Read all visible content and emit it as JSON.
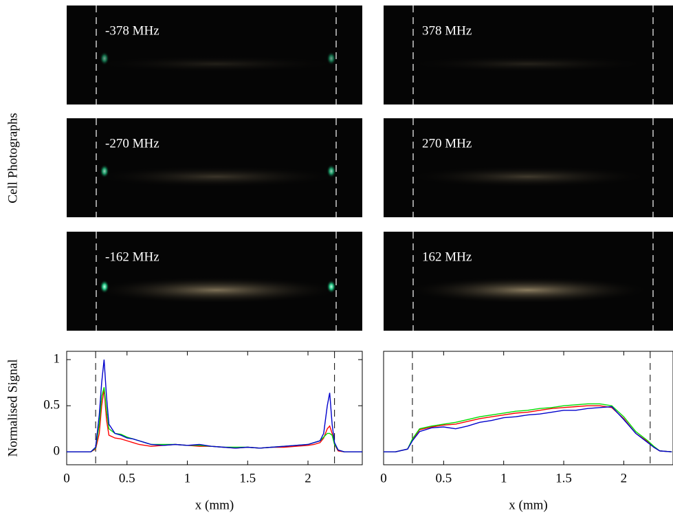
{
  "photos_label": "Cell Photographs",
  "photos": [
    {
      "label": "-378 MHz"
    },
    {
      "label": "378 MHz"
    },
    {
      "label": "-270 MHz"
    },
    {
      "label": "270 MHz"
    },
    {
      "label": "-162 MHz"
    },
    {
      "label": "162 MHz"
    }
  ],
  "chart_data": [
    {
      "type": "line",
      "ylabel": "Normalised Signal",
      "xlabel": "x (mm)",
      "xlim": [
        0,
        2.45
      ],
      "ylim": [
        -0.14,
        1.09
      ],
      "xticks": [
        0,
        0.5,
        1,
        1.5,
        2
      ],
      "yticks": [
        0,
        0.5,
        1
      ],
      "vlines": [
        0.24,
        2.22
      ],
      "x": [
        0,
        0.1,
        0.2,
        0.24,
        0.27,
        0.29,
        0.31,
        0.33,
        0.35,
        0.4,
        0.45,
        0.5,
        0.55,
        0.6,
        0.65,
        0.7,
        0.8,
        0.9,
        1.0,
        1.1,
        1.2,
        1.3,
        1.4,
        1.5,
        1.6,
        1.7,
        1.8,
        1.9,
        2.0,
        2.05,
        2.1,
        2.13,
        2.16,
        2.18,
        2.2,
        2.22,
        2.25,
        2.3,
        2.4,
        2.45
      ],
      "series": [
        {
          "color": "#ff0000",
          "values": [
            0,
            0,
            0,
            0.03,
            0.2,
            0.5,
            0.68,
            0.35,
            0.18,
            0.15,
            0.14,
            0.12,
            0.1,
            0.08,
            0.07,
            0.06,
            0.07,
            0.08,
            0.07,
            0.06,
            0.06,
            0.05,
            0.04,
            0.05,
            0.04,
            0.05,
            0.05,
            0.06,
            0.07,
            0.08,
            0.1,
            0.15,
            0.25,
            0.28,
            0.2,
            0.08,
            0.01,
            0,
            0,
            0
          ]
        },
        {
          "color": "#00dd00",
          "values": [
            0,
            0,
            0,
            0.04,
            0.3,
            0.6,
            0.7,
            0.45,
            0.25,
            0.2,
            0.19,
            0.16,
            0.14,
            0.12,
            0.1,
            0.08,
            0.08,
            0.08,
            0.07,
            0.07,
            0.06,
            0.05,
            0.05,
            0.05,
            0.04,
            0.05,
            0.06,
            0.07,
            0.08,
            0.1,
            0.12,
            0.16,
            0.2,
            0.2,
            0.18,
            0.08,
            0.02,
            0,
            0,
            0
          ]
        },
        {
          "color": "#0000cc",
          "values": [
            0,
            0,
            0,
            0.05,
            0.4,
            0.75,
            1.0,
            0.6,
            0.3,
            0.2,
            0.18,
            0.15,
            0.14,
            0.12,
            0.1,
            0.08,
            0.07,
            0.08,
            0.07,
            0.08,
            0.06,
            0.05,
            0.04,
            0.05,
            0.04,
            0.05,
            0.06,
            0.07,
            0.08,
            0.1,
            0.12,
            0.2,
            0.5,
            0.64,
            0.3,
            0.1,
            0.02,
            0,
            0,
            0
          ]
        }
      ]
    },
    {
      "type": "line",
      "xlabel": "x (mm)",
      "xlim": [
        0,
        2.41
      ],
      "ylim": [
        -0.14,
        1.09
      ],
      "xticks": [
        0,
        0.5,
        1,
        1.5,
        2
      ],
      "vlines": [
        0.24,
        2.22
      ],
      "x": [
        0,
        0.1,
        0.2,
        0.24,
        0.3,
        0.4,
        0.5,
        0.6,
        0.7,
        0.8,
        0.9,
        1.0,
        1.1,
        1.2,
        1.3,
        1.4,
        1.5,
        1.6,
        1.7,
        1.8,
        1.9,
        2.0,
        2.1,
        2.2,
        2.25,
        2.3,
        2.4
      ],
      "series": [
        {
          "color": "#ff0000",
          "values": [
            0,
            0,
            0.03,
            0.13,
            0.24,
            0.27,
            0.29,
            0.3,
            0.33,
            0.36,
            0.38,
            0.4,
            0.42,
            0.43,
            0.45,
            0.47,
            0.48,
            0.49,
            0.5,
            0.5,
            0.48,
            0.36,
            0.2,
            0.11,
            0.05,
            0.01,
            0
          ]
        },
        {
          "color": "#00dd00",
          "values": [
            0,
            0,
            0.03,
            0.14,
            0.25,
            0.28,
            0.3,
            0.32,
            0.35,
            0.38,
            0.4,
            0.42,
            0.44,
            0.45,
            0.47,
            0.48,
            0.5,
            0.51,
            0.52,
            0.52,
            0.5,
            0.38,
            0.22,
            0.12,
            0.06,
            0.01,
            0
          ]
        },
        {
          "color": "#0000cc",
          "values": [
            0,
            0,
            0.03,
            0.12,
            0.22,
            0.26,
            0.27,
            0.25,
            0.28,
            0.32,
            0.34,
            0.37,
            0.38,
            0.4,
            0.41,
            0.43,
            0.45,
            0.45,
            0.47,
            0.48,
            0.49,
            0.35,
            0.2,
            0.1,
            0.05,
            0.01,
            0
          ]
        }
      ]
    }
  ]
}
